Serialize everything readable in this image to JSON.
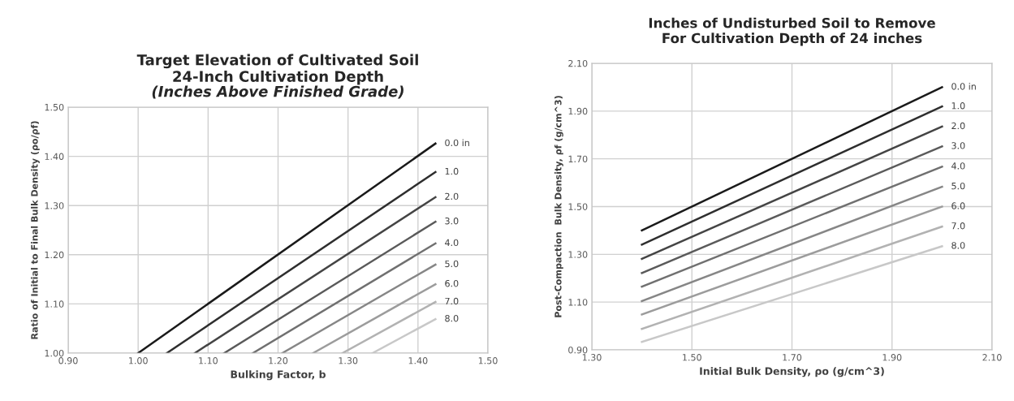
{
  "chart_data": [
    {
      "type": "line",
      "title": "Target Elevation of Cultivated Soil\n24-Inch Cultivation Depth",
      "subtitle": "(Inches Above Finished Grade)",
      "xlabel": "Bulking Factor, b",
      "ylabel": "Ratio of Initial to Final Bulk Density (ρo/ρf)",
      "xlim": [
        0.9,
        1.5
      ],
      "ylim": [
        1.0,
        1.5
      ],
      "xticks": [
        {
          "value": 0.9,
          "label": "0.90"
        },
        {
          "value": 1.0,
          "label": "1.00"
        },
        {
          "value": 1.1,
          "label": "1.10"
        },
        {
          "value": 1.2,
          "label": "1.20"
        },
        {
          "value": 1.3,
          "label": "1.30"
        },
        {
          "value": 1.4,
          "label": "1.40"
        },
        {
          "value": 1.5,
          "label": "1.50"
        }
      ],
      "yticks": [
        {
          "value": 1.0,
          "label": "1.00"
        },
        {
          "value": 1.1,
          "label": "1.10"
        },
        {
          "value": 1.2,
          "label": "1.20"
        },
        {
          "value": 1.3,
          "label": "1.30"
        },
        {
          "value": 1.4,
          "label": "1.40"
        },
        {
          "value": 1.5,
          "label": "1.50"
        }
      ],
      "grid": true,
      "legend": false,
      "marker": "none",
      "line_style": "solid",
      "series": [
        {
          "name": "0.0 in",
          "color": "#1a1a1a",
          "x": [
            1.0,
            1.425
          ],
          "values": [
            1.0,
            1.426
          ]
        },
        {
          "name": "1.0",
          "color": "#2e2e2e",
          "x": [
            1.041,
            1.425
          ],
          "values": [
            1.0,
            1.368
          ]
        },
        {
          "name": "2.0",
          "color": "#444444",
          "x": [
            1.081,
            1.425
          ],
          "values": [
            1.0,
            1.317
          ]
        },
        {
          "name": "3.0",
          "color": "#5a5a5a",
          "x": [
            1.123,
            1.425
          ],
          "values": [
            1.0,
            1.267
          ]
        },
        {
          "name": "4.0",
          "color": "#707070",
          "x": [
            1.164,
            1.425
          ],
          "values": [
            1.0,
            1.223
          ]
        },
        {
          "name": "5.0",
          "color": "#868686",
          "x": [
            1.206,
            1.425
          ],
          "values": [
            1.0,
            1.18
          ]
        },
        {
          "name": "6.0",
          "color": "#9c9c9c",
          "x": [
            1.25,
            1.425
          ],
          "values": [
            1.0,
            1.14
          ]
        },
        {
          "name": "7.0",
          "color": "#b2b2b2",
          "x": [
            1.292,
            1.425
          ],
          "values": [
            1.0,
            1.104
          ]
        },
        {
          "name": "8.0",
          "color": "#c8c8c8",
          "x": [
            1.335,
            1.425
          ],
          "values": [
            1.0,
            1.069
          ]
        }
      ]
    },
    {
      "type": "line",
      "title": "Inches of Undisturbed Soil to Remove\nFor Cultivation Depth of 24 inches",
      "xlabel": "Initial Bulk Density, ρo (g/cm^3)",
      "ylabel": "Post-Compaction  Bulk Density, ρf (g/cm^3)",
      "xlim": [
        1.3,
        2.1
      ],
      "ylim": [
        0.9,
        2.1
      ],
      "xticks": [
        {
          "value": 1.3,
          "label": "1.30"
        },
        {
          "value": 1.5,
          "label": "1.50"
        },
        {
          "value": 1.7,
          "label": "1.70"
        },
        {
          "value": 1.9,
          "label": "1.90"
        },
        {
          "value": 2.1,
          "label": "2.10"
        }
      ],
      "yticks": [
        {
          "value": 0.9,
          "label": "0.90"
        },
        {
          "value": 1.1,
          "label": "1.10"
        },
        {
          "value": 1.3,
          "label": "1.30"
        },
        {
          "value": 1.5,
          "label": "1.50"
        },
        {
          "value": 1.7,
          "label": "1.70"
        },
        {
          "value": 1.9,
          "label": "1.90"
        },
        {
          "value": 2.1,
          "label": "2.10"
        }
      ],
      "grid": true,
      "legend": false,
      "marker": "none",
      "line_style": "solid",
      "series": [
        {
          "name": "0.0 in",
          "color": "#1a1a1a",
          "x": [
            1.4,
            2.0
          ],
          "values": [
            1.4,
            2.0
          ]
        },
        {
          "name": "1.0",
          "color": "#2e2e2e",
          "x": [
            1.4,
            2.0
          ],
          "values": [
            1.341,
            1.919
          ]
        },
        {
          "name": "2.0",
          "color": "#444444",
          "x": [
            1.4,
            2.0
          ],
          "values": [
            1.281,
            1.835
          ]
        },
        {
          "name": "3.0",
          "color": "#5a5a5a",
          "x": [
            1.4,
            2.0
          ],
          "values": [
            1.222,
            1.752
          ]
        },
        {
          "name": "4.0",
          "color": "#707070",
          "x": [
            1.4,
            2.0
          ],
          "values": [
            1.165,
            1.667
          ]
        },
        {
          "name": "5.0",
          "color": "#868686",
          "x": [
            1.4,
            2.0
          ],
          "values": [
            1.104,
            1.583
          ]
        },
        {
          "name": "6.0",
          "color": "#9c9c9c",
          "x": [
            1.4,
            2.0
          ],
          "values": [
            1.048,
            1.5
          ]
        },
        {
          "name": "7.0",
          "color": "#b2b2b2",
          "x": [
            1.4,
            2.0
          ],
          "values": [
            0.988,
            1.416
          ]
        },
        {
          "name": "8.0",
          "color": "#c8c8c8",
          "x": [
            1.4,
            2.0
          ],
          "values": [
            0.933,
            1.334
          ]
        }
      ]
    }
  ]
}
